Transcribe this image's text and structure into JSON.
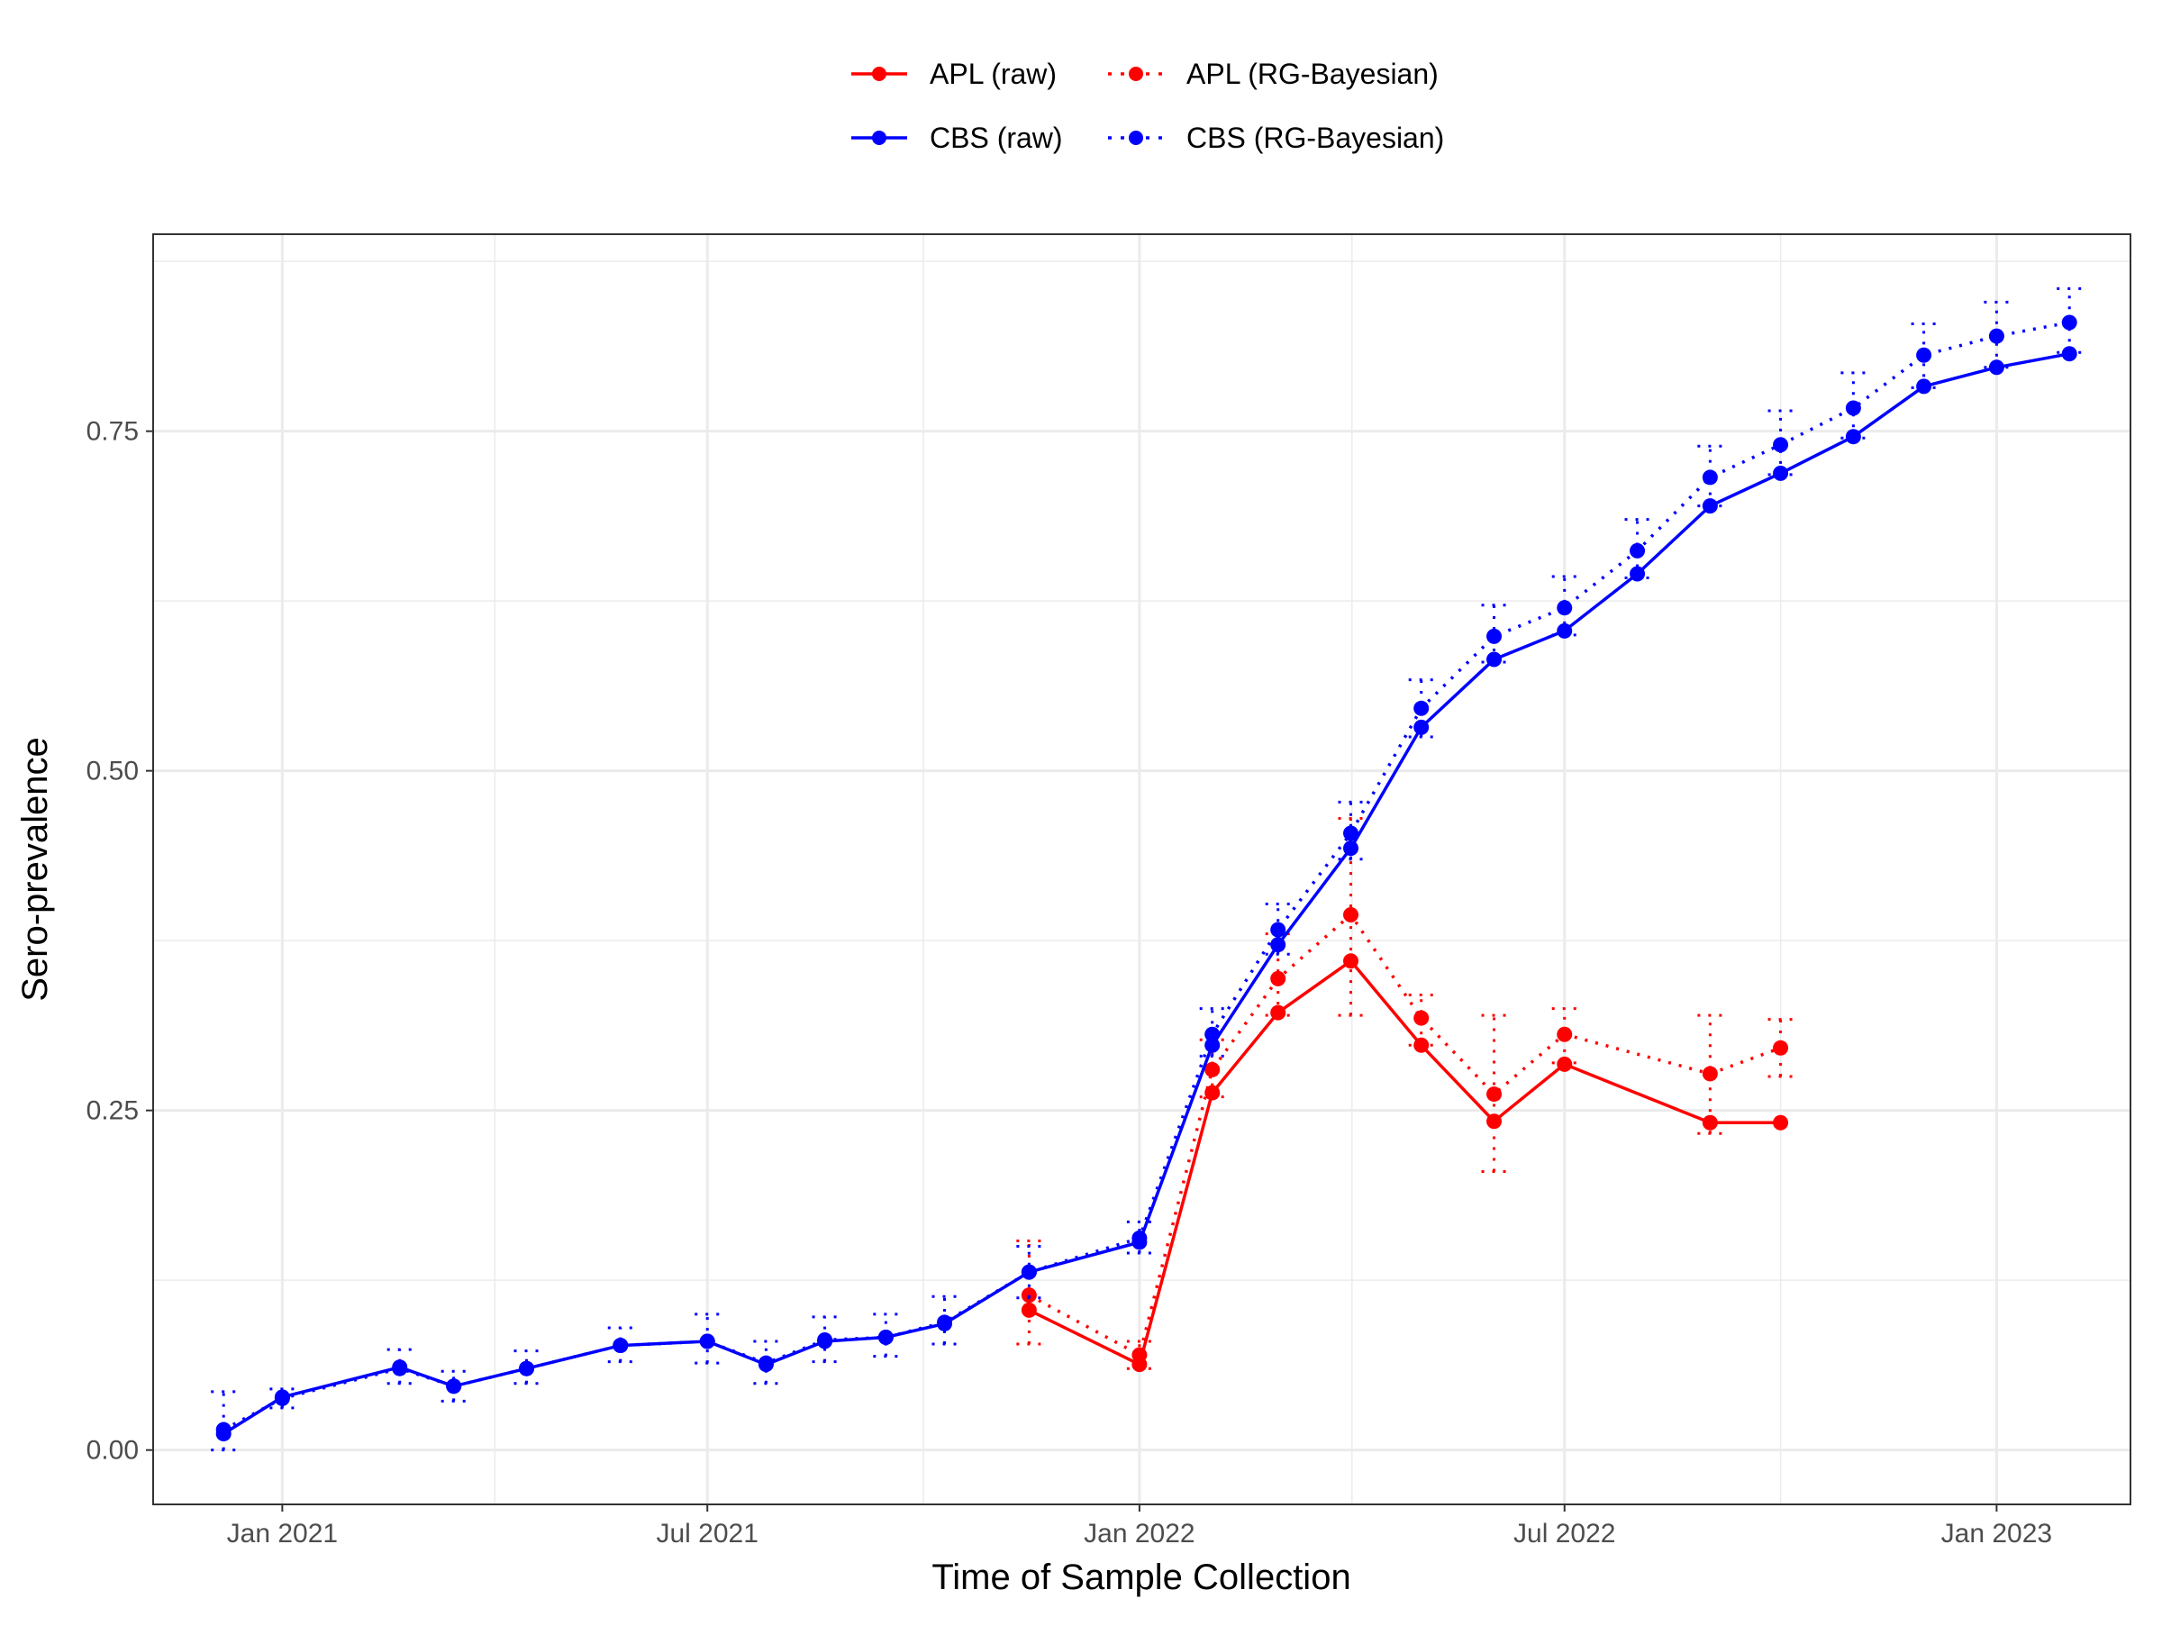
{
  "chart_data": {
    "type": "line",
    "title": "",
    "xlabel": "Time of Sample Collection",
    "ylabel": "Sero-prevalence",
    "x_type": "date",
    "xlim": [
      "2020-11-07",
      "2023-02-27"
    ],
    "ylim": [
      -0.04,
      0.895
    ],
    "x_ticks": [
      {
        "date": "2021-01-01",
        "label": "Jan 2021"
      },
      {
        "date": "2021-07-01",
        "label": "Jul 2021"
      },
      {
        "date": "2022-01-01",
        "label": "Jan 2022"
      },
      {
        "date": "2022-07-01",
        "label": "Jul 2022"
      },
      {
        "date": "2023-01-01",
        "label": "Jan 2023"
      }
    ],
    "y_ticks": [
      {
        "value": 0.0,
        "label": "0.00"
      },
      {
        "value": 0.25,
        "label": "0.25"
      },
      {
        "value": 0.5,
        "label": "0.50"
      },
      {
        "value": 0.75,
        "label": "0.75"
      }
    ],
    "grid": true,
    "legend_position": "top",
    "series": [
      {
        "name": "APL (raw)",
        "color": "#ff0000",
        "line_style": "solid",
        "points": [
          {
            "x": "2021-11-15",
            "y": 0.103
          },
          {
            "x": "2022-01-01",
            "y": 0.063
          },
          {
            "x": "2022-02-01",
            "y": 0.263
          },
          {
            "x": "2022-03-01",
            "y": 0.322
          },
          {
            "x": "2022-04-01",
            "y": 0.36
          },
          {
            "x": "2022-05-01",
            "y": 0.298
          },
          {
            "x": "2022-06-01",
            "y": 0.242
          },
          {
            "x": "2022-07-01",
            "y": 0.284
          },
          {
            "x": "2022-09-01",
            "y": 0.241
          },
          {
            "x": "2022-10-01",
            "y": 0.241
          }
        ]
      },
      {
        "name": "APL (RG-Bayesian)",
        "color": "#ff0000",
        "line_style": "dotted",
        "points": [
          {
            "x": "2021-11-15",
            "y": 0.114,
            "lo": 0.078,
            "hi": 0.154
          },
          {
            "x": "2022-01-01",
            "y": 0.07,
            "lo": 0.06,
            "hi": 0.08
          },
          {
            "x": "2022-02-01",
            "y": 0.28,
            "lo": 0.26,
            "hi": 0.302
          },
          {
            "x": "2022-03-01",
            "y": 0.347,
            "lo": 0.32,
            "hi": 0.38
          },
          {
            "x": "2022-04-01",
            "y": 0.394,
            "lo": 0.32,
            "hi": 0.465
          },
          {
            "x": "2022-05-01",
            "y": 0.318,
            "lo": 0.298,
            "hi": 0.335
          },
          {
            "x": "2022-06-01",
            "y": 0.262,
            "lo": 0.205,
            "hi": 0.32
          },
          {
            "x": "2022-07-01",
            "y": 0.306,
            "lo": 0.285,
            "hi": 0.325
          },
          {
            "x": "2022-09-01",
            "y": 0.277,
            "lo": 0.233,
            "hi": 0.32
          },
          {
            "x": "2022-10-01",
            "y": 0.296,
            "lo": 0.275,
            "hi": 0.317
          }
        ]
      },
      {
        "name": "CBS (raw)",
        "color": "#0000ff",
        "line_style": "solid",
        "points": [
          {
            "x": "2020-12-07",
            "y": 0.012
          },
          {
            "x": "2021-01-01",
            "y": 0.039
          },
          {
            "x": "2021-02-20",
            "y": 0.061
          },
          {
            "x": "2021-03-15",
            "y": 0.047
          },
          {
            "x": "2021-04-15",
            "y": 0.06
          },
          {
            "x": "2021-05-25",
            "y": 0.077
          },
          {
            "x": "2021-07-01",
            "y": 0.08
          },
          {
            "x": "2021-07-26",
            "y": 0.063
          },
          {
            "x": "2021-08-20",
            "y": 0.08
          },
          {
            "x": "2021-09-15",
            "y": 0.083
          },
          {
            "x": "2021-10-10",
            "y": 0.093
          },
          {
            "x": "2021-11-15",
            "y": 0.131
          },
          {
            "x": "2022-01-01",
            "y": 0.153
          },
          {
            "x": "2022-02-01",
            "y": 0.298
          },
          {
            "x": "2022-03-01",
            "y": 0.372
          },
          {
            "x": "2022-04-01",
            "y": 0.443
          },
          {
            "x": "2022-05-01",
            "y": 0.532
          },
          {
            "x": "2022-06-01",
            "y": 0.582
          },
          {
            "x": "2022-07-01",
            "y": 0.603
          },
          {
            "x": "2022-08-01",
            "y": 0.645
          },
          {
            "x": "2022-09-01",
            "y": 0.695
          },
          {
            "x": "2022-10-01",
            "y": 0.719
          },
          {
            "x": "2022-11-01",
            "y": 0.746
          },
          {
            "x": "2022-12-01",
            "y": 0.783
          },
          {
            "x": "2023-01-01",
            "y": 0.797
          },
          {
            "x": "2023-02-01",
            "y": 0.807
          }
        ]
      },
      {
        "name": "CBS (RG-Bayesian)",
        "color": "#0000ff",
        "line_style": "dotted",
        "points": [
          {
            "x": "2020-12-07",
            "y": 0.015,
            "lo": 0.0,
            "hi": 0.043
          },
          {
            "x": "2021-01-01",
            "y": 0.038,
            "lo": 0.031,
            "hi": 0.045
          },
          {
            "x": "2021-02-20",
            "y": 0.06,
            "lo": 0.049,
            "hi": 0.074
          },
          {
            "x": "2021-03-15",
            "y": 0.047,
            "lo": 0.036,
            "hi": 0.058
          },
          {
            "x": "2021-04-15",
            "y": 0.06,
            "lo": 0.049,
            "hi": 0.073
          },
          {
            "x": "2021-05-25",
            "y": 0.077,
            "lo": 0.065,
            "hi": 0.09
          },
          {
            "x": "2021-07-01",
            "y": 0.08,
            "lo": 0.064,
            "hi": 0.1
          },
          {
            "x": "2021-07-26",
            "y": 0.064,
            "lo": 0.049,
            "hi": 0.08
          },
          {
            "x": "2021-08-20",
            "y": 0.081,
            "lo": 0.065,
            "hi": 0.098
          },
          {
            "x": "2021-09-15",
            "y": 0.083,
            "lo": 0.069,
            "hi": 0.1
          },
          {
            "x": "2021-10-10",
            "y": 0.094,
            "lo": 0.078,
            "hi": 0.113
          },
          {
            "x": "2021-11-15",
            "y": 0.131,
            "lo": 0.112,
            "hi": 0.15
          },
          {
            "x": "2022-01-01",
            "y": 0.156,
            "lo": 0.145,
            "hi": 0.168
          },
          {
            "x": "2022-02-01",
            "y": 0.306,
            "lo": 0.29,
            "hi": 0.325
          },
          {
            "x": "2022-03-01",
            "y": 0.383,
            "lo": 0.365,
            "hi": 0.402
          },
          {
            "x": "2022-04-01",
            "y": 0.454,
            "lo": 0.435,
            "hi": 0.477
          },
          {
            "x": "2022-05-01",
            "y": 0.546,
            "lo": 0.525,
            "hi": 0.567
          },
          {
            "x": "2022-06-01",
            "y": 0.599,
            "lo": 0.58,
            "hi": 0.622
          },
          {
            "x": "2022-07-01",
            "y": 0.62,
            "lo": 0.6,
            "hi": 0.643
          },
          {
            "x": "2022-08-01",
            "y": 0.662,
            "lo": 0.642,
            "hi": 0.685
          },
          {
            "x": "2022-09-01",
            "y": 0.716,
            "lo": 0.695,
            "hi": 0.739
          },
          {
            "x": "2022-10-01",
            "y": 0.74,
            "lo": 0.718,
            "hi": 0.765
          },
          {
            "x": "2022-11-01",
            "y": 0.767,
            "lo": 0.745,
            "hi": 0.793
          },
          {
            "x": "2022-12-01",
            "y": 0.806,
            "lo": 0.782,
            "hi": 0.829
          },
          {
            "x": "2023-01-01",
            "y": 0.82,
            "lo": 0.797,
            "hi": 0.845
          },
          {
            "x": "2023-02-01",
            "y": 0.83,
            "lo": 0.808,
            "hi": 0.855
          }
        ]
      }
    ]
  }
}
